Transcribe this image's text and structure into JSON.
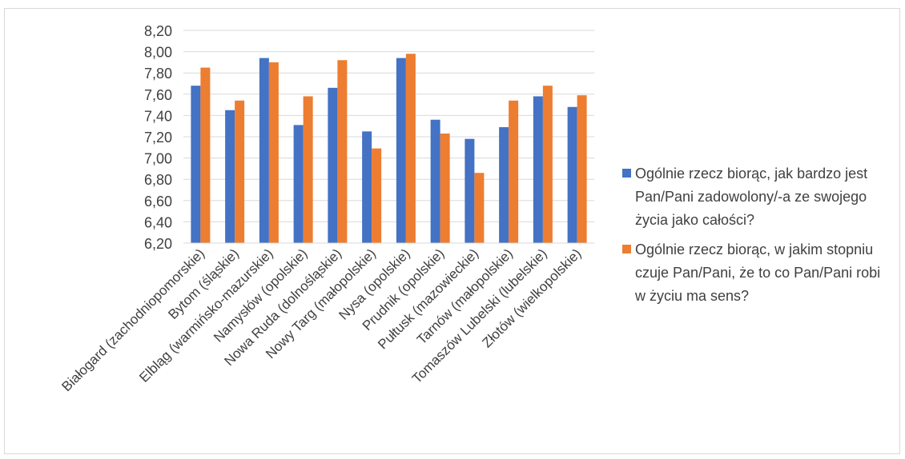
{
  "chart_data": {
    "type": "bar",
    "categories": [
      "Białogard (zachodniopomorskie)",
      "Bytom (śląskie)",
      "Elbląg (warmińsko-mazurskie)",
      "Namysłów (opolskie)",
      "Nowa Ruda (dolnośląskie)",
      "Nowy Targ (małopolskie)",
      "Nysa (opolskie)",
      "Prudnik (opolskie)",
      "Pułtusk (mazowieckie)",
      "Tarnów (małopolskie)",
      "Tomaszów Lubelski (lubelskie)",
      "Złotów (wielkopolskie)"
    ],
    "series": [
      {
        "name": "Ogólnie rzecz biorąc, jak bardzo jest Pan/Pani zadowolony/-a  ze swojego życia jako całości?",
        "color": "#4472c4",
        "values": [
          7.68,
          7.45,
          7.94,
          7.31,
          7.66,
          7.25,
          7.94,
          7.36,
          7.18,
          7.29,
          7.58,
          7.48
        ]
      },
      {
        "name": "Ogólnie rzecz biorąc, w jakim stopniu czuje Pan/Pani, że to co Pan/Pani robi w życiu ma sens?",
        "color": "#ed7d31",
        "values": [
          7.85,
          7.54,
          7.9,
          7.58,
          7.92,
          7.09,
          7.98,
          7.23,
          6.86,
          7.54,
          7.68,
          7.59
        ]
      }
    ],
    "yticks": [
      "8,20",
      "8,00",
      "7,80",
      "7,60",
      "7,40",
      "7,20",
      "7,00",
      "6,80",
      "6,60",
      "6,40",
      "6,20"
    ],
    "ylim": [
      6.2,
      8.2
    ],
    "grid": true,
    "legend_position": "right",
    "title": "",
    "xlabel": "",
    "ylabel": ""
  }
}
